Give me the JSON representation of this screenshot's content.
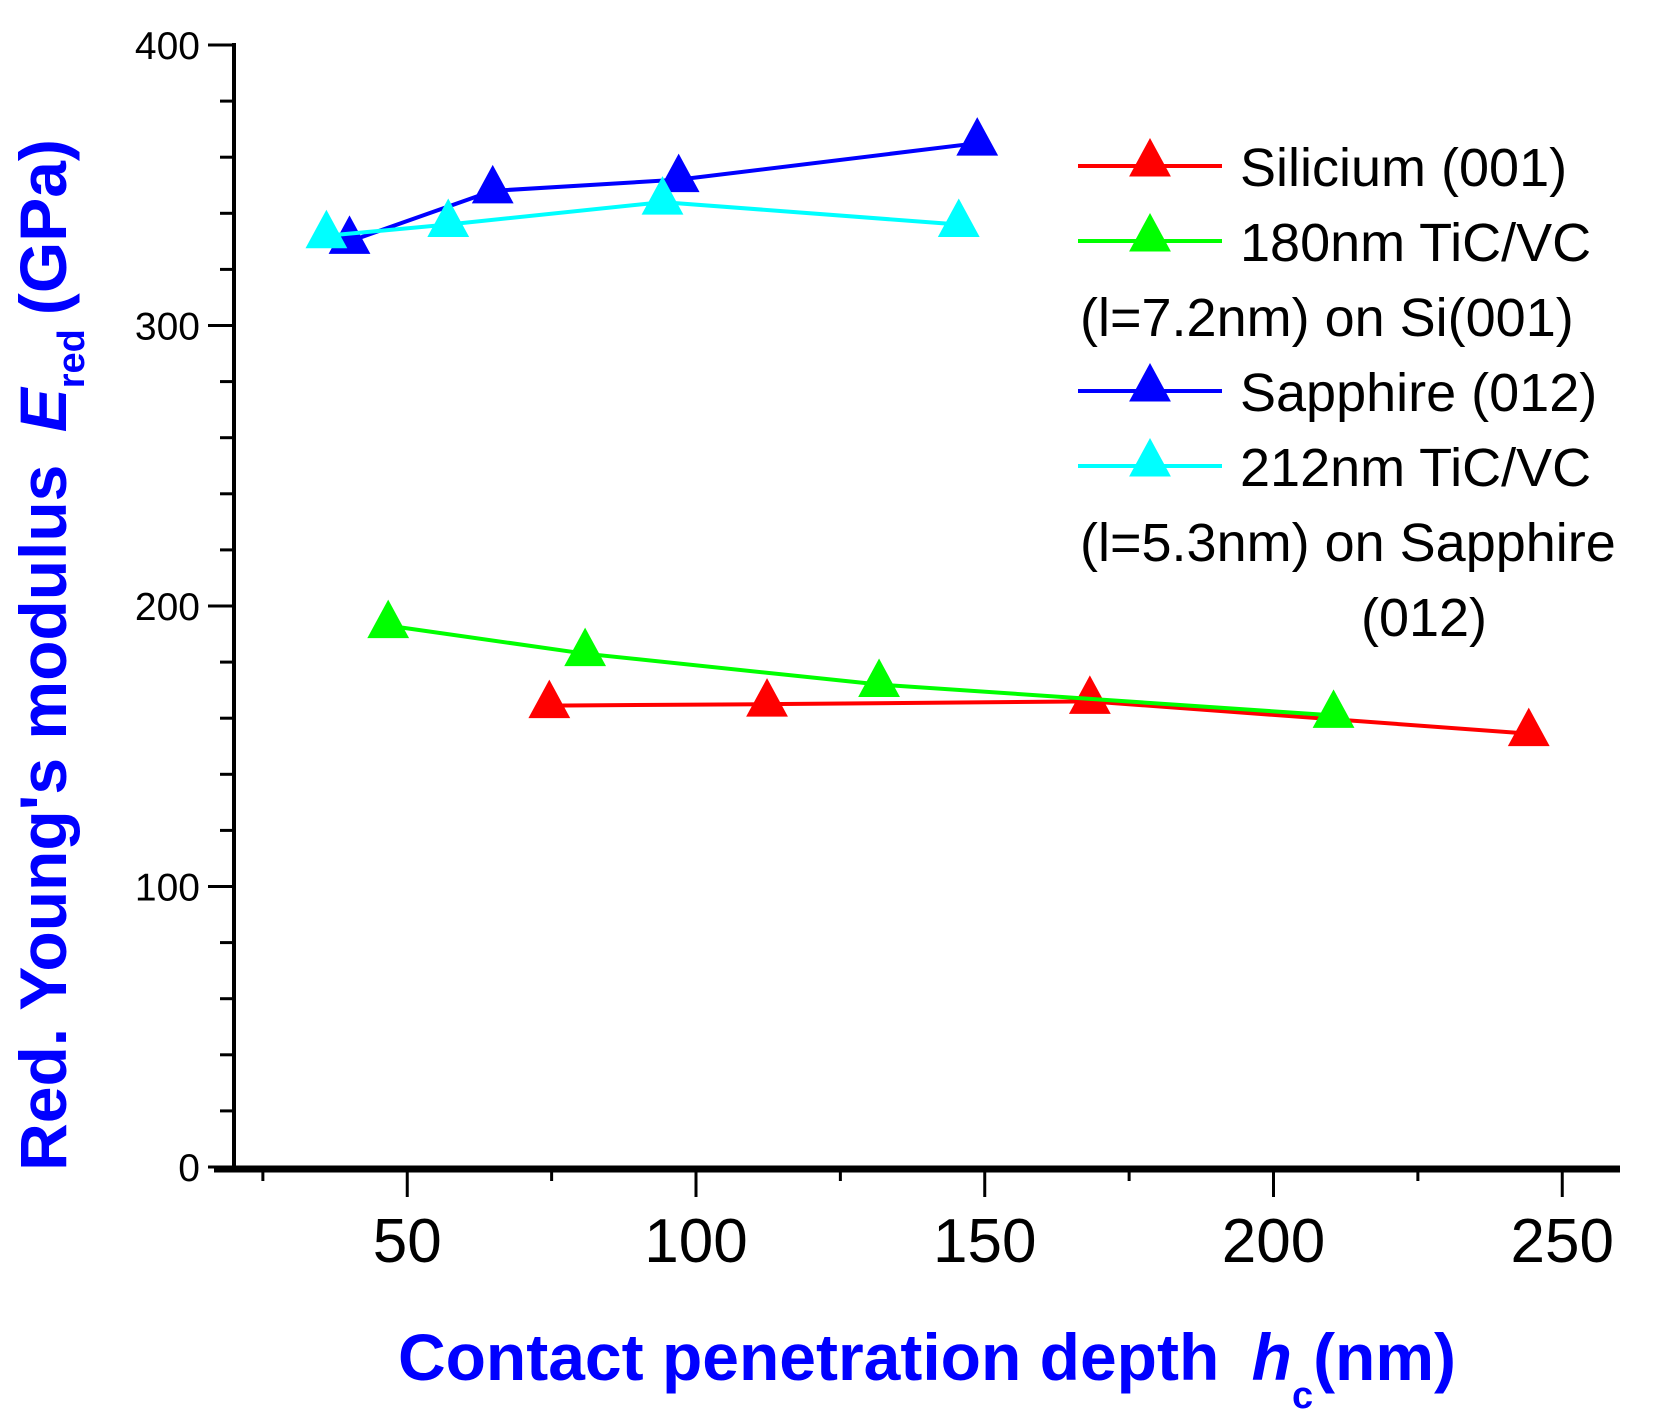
{
  "chart_data": {
    "type": "line",
    "title": "",
    "xlabel": "Contact penetration depth",
    "xlabel_symbol": "h",
    "xlabel_sub": "c",
    "xlabel_unit": "(nm)",
    "ylabel": "Red. Young's modulus",
    "ylabel_symbol": "E",
    "ylabel_sub": "red",
    "ylabel_unit": "(GPa)",
    "xlim": [
      20,
      260
    ],
    "ylim": [
      0,
      400
    ],
    "xticks": [
      50,
      100,
      150,
      200,
      250
    ],
    "yticks": [
      0,
      100,
      200,
      300,
      400
    ],
    "grid": false,
    "legend_position": "top-right",
    "label_color": "#0000ff",
    "series": [
      {
        "name": "Silicium (001)",
        "legend_lines": [
          "Silicium (001)"
        ],
        "color": "#ff0000",
        "marker": "triangle",
        "x": [
          74.6,
          112.3,
          168.2,
          244.2
        ],
        "y": [
          164.5,
          165,
          166,
          154.5
        ]
      },
      {
        "name": "180nm TiC/VC (l=7.2nm) on Si(001)",
        "legend_lines": [
          "180nm TiC/VC",
          "(l=7.2nm) on Si(001)"
        ],
        "color": "#00ff00",
        "marker": "triangle",
        "x": [
          46.7,
          80.8,
          131.7,
          210.4
        ],
        "y": [
          193,
          183,
          172,
          161
        ]
      },
      {
        "name": "Sapphire (012)",
        "legend_lines": [
          "Sapphire (012)"
        ],
        "color": "#0000ff",
        "marker": "triangle",
        "x": [
          40,
          64.8,
          97,
          148.7
        ],
        "y": [
          330,
          348,
          352,
          365
        ]
      },
      {
        "name": "212nm TiC/VC (l=5.3nm) on Sapphire (012)",
        "legend_lines": [
          "212nm TiC/VC",
          "(l=5.3nm) on Sapphire",
          "(012)"
        ],
        "color": "#00ffff",
        "marker": "triangle",
        "x": [
          36,
          57.1,
          94.2,
          145.5
        ],
        "y": [
          332,
          336,
          344,
          336
        ]
      }
    ]
  }
}
